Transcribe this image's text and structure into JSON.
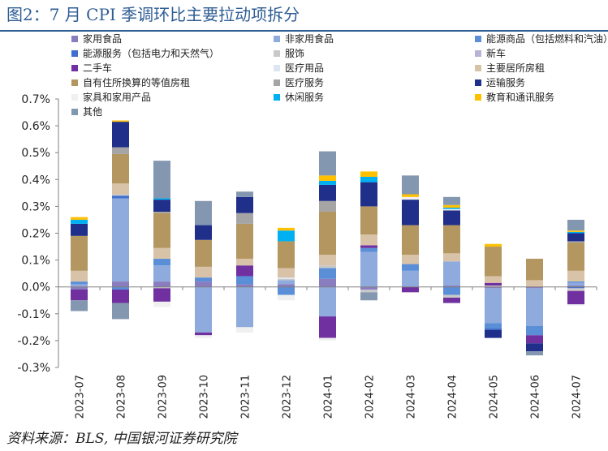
{
  "title": "图2：7 月 CPI 季调环比主要拉动项拆分",
  "source": "资料来源：BLS, 中国银河证券研究院",
  "colors": {
    "title": "#2e5d94",
    "axis": "#808080"
  },
  "chart_data": {
    "type": "bar",
    "stacked": true,
    "categories": [
      "2023-07",
      "2023-08",
      "2023-09",
      "2023-10",
      "2023-11",
      "2023-12",
      "2024-01",
      "2024-02",
      "2024-03",
      "2024-04",
      "2024-05",
      "2024-06",
      "2024-07"
    ],
    "ylim": [
      -0.003,
      0.007
    ],
    "yticks": [
      -0.003,
      -0.002,
      -0.001,
      0,
      0.001,
      0.002,
      0.003,
      0.004,
      0.005,
      0.006,
      0.007
    ],
    "ytick_labels": [
      "-0.3%",
      "-0.2%",
      "-0.1%",
      "0.0%",
      "0.1%",
      "0.2%",
      "0.3%",
      "0.4%",
      "0.5%",
      "0.6%",
      "0.7%"
    ],
    "legend_position": "top",
    "series": [
      {
        "name": "家用食品",
        "color": "#8a7dbf",
        "values": [
          -0.0001,
          0.0002,
          0.0002,
          0.0002,
          0.0001,
          0.0001,
          0.0003,
          -0.0001,
          0,
          5e-05,
          -5e-05,
          -5e-05,
          5e-05
        ]
      },
      {
        "name": "非家用食品",
        "color": "#8faadc",
        "values": [
          0.0001,
          0.0031,
          0.0006,
          -0.0017,
          -0.0015,
          0.00015,
          -0.0011,
          0.0013,
          0.0006,
          0.0009,
          -0.0013,
          -0.0014,
          0.0001
        ]
      },
      {
        "name": "能源商品（包括燃料和汽油）",
        "color": "#5a8fd8",
        "values": [
          0.0001,
          -0.0001,
          0.00025,
          0.00015,
          0.0003,
          -0.0003,
          0.0004,
          0.00015,
          0.00025,
          -0.0003,
          -0.0002,
          -0.00035,
          5e-05
        ]
      },
      {
        "name": "能源服务（包括电力和天然气）",
        "color": "#3f6fcf",
        "values": [
          0,
          0.0001,
          0,
          0,
          0,
          0,
          0,
          0,
          0,
          0,
          -5e-05,
          0,
          -5e-05
        ]
      },
      {
        "name": "服饰",
        "color": "#c9c9c9",
        "values": [
          0,
          5e-05,
          -5e-05,
          0,
          0,
          5e-05,
          0.0001,
          -0.0001,
          0,
          -0.0001,
          5e-05,
          0,
          -0.0001
        ]
      },
      {
        "name": "新车",
        "color": "#b7b3d6",
        "values": [
          0,
          0,
          0,
          0,
          0,
          0,
          0,
          0,
          0,
          0,
          0,
          0,
          0
        ]
      },
      {
        "name": "二手车",
        "color": "#7030a0",
        "values": [
          -0.0004,
          -0.0005,
          -0.0005,
          -0.0001,
          0.0004,
          0,
          -0.0008,
          0.0001,
          -0.0002,
          -0.0002,
          0.0001,
          -0.0003,
          -0.0005
        ]
      },
      {
        "name": "医疗用品",
        "color": "#dde5f3",
        "values": [
          0,
          0,
          0,
          0,
          0,
          5e-05,
          0,
          0,
          0,
          0,
          0,
          0,
          0
        ]
      },
      {
        "name": "主要居所房租",
        "color": "#d9c3a8",
        "values": [
          0.0004,
          0.0004,
          0.0004,
          0.0004,
          0.00025,
          0.00035,
          0.0004,
          0.0004,
          0.00035,
          0.0003,
          0.00025,
          0.00025,
          0.0004
        ]
      },
      {
        "name": "自有住所换算的等值房租",
        "color": "#b39660",
        "values": [
          0.0013,
          0.0011,
          0.0013,
          0.001,
          0.0013,
          0.001,
          0.0016,
          0.00105,
          0.0011,
          0.00105,
          0.0011,
          0.0008,
          0.00105
        ]
      },
      {
        "name": "医疗服务",
        "color": "#a5a5a5",
        "values": [
          0,
          0.00025,
          5e-05,
          0,
          0.0004,
          0,
          0.0004,
          0,
          0,
          0,
          0,
          0,
          5e-05
        ]
      },
      {
        "name": "运输服务",
        "color": "#1f2f8a",
        "values": [
          0.00045,
          0.00095,
          0.00045,
          0.00055,
          0.0006,
          0,
          0.0006,
          0.0009,
          0.00095,
          0.00055,
          -0.0003,
          -0.0003,
          0.0003
        ]
      },
      {
        "name": "家具和家用产品",
        "color": "#f0f0f0",
        "values": [
          0,
          0,
          -0.0002,
          -0.0001,
          -0.0002,
          -0.0002,
          -0.0001,
          0,
          0.0001,
          5e-05,
          0,
          0,
          -5e-05
        ]
      },
      {
        "name": "休闲服务",
        "color": "#00b0f0",
        "values": [
          0.00015,
          0,
          5e-05,
          0,
          0,
          0.0004,
          0.00015,
          0.0002,
          0,
          5e-05,
          0,
          0,
          5e-05
        ]
      },
      {
        "name": "教育和通讯服务",
        "color": "#ffc000",
        "values": [
          0.0001,
          5e-05,
          0,
          0,
          0,
          0.0001,
          0.0002,
          0.0002,
          0.0001,
          0.0001,
          0.0001,
          0,
          5e-05
        ]
      },
      {
        "name": "其他",
        "color": "#8497b0",
        "values": [
          -0.0004,
          -0.0006,
          0.0014,
          0.0009,
          0.0002,
          0,
          0.0009,
          -0.0003,
          0.0007,
          0.0003,
          0,
          -0.00015,
          0.0004
        ]
      }
    ]
  }
}
